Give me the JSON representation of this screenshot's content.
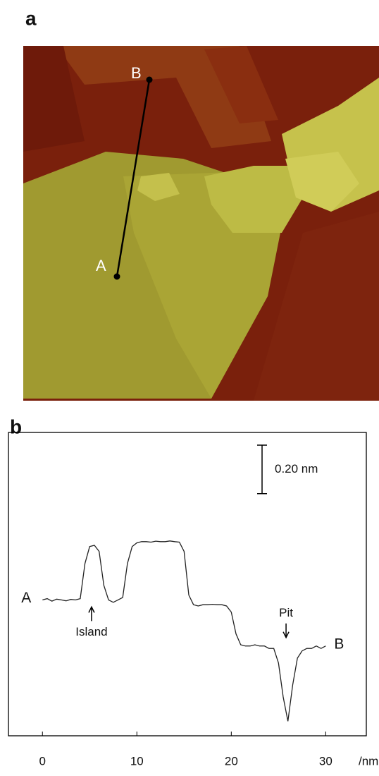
{
  "panels": {
    "a": {
      "label": "a",
      "point_a": "A",
      "point_b": "B"
    },
    "b": {
      "label": "b"
    }
  },
  "chart_data": {
    "type": "line",
    "xlabel": "/nm",
    "x": [
      0,
      0.5,
      1,
      1.5,
      2,
      2.5,
      3,
      3.5,
      4,
      4.5,
      5,
      5.5,
      6,
      6.5,
      7,
      7.5,
      8,
      8.5,
      9,
      9.5,
      10,
      10.5,
      11,
      11.5,
      12,
      12.5,
      13,
      13.5,
      14,
      14.5,
      15,
      15.5,
      16,
      16.5,
      17,
      17.5,
      18,
      18.5,
      19,
      19.5,
      20,
      20.5,
      21,
      21.5,
      22,
      22.5,
      23,
      23.5,
      24,
      24.5,
      25,
      25.5,
      26,
      26.5,
      27,
      27.5,
      28,
      28.5,
      29,
      29.5,
      30
    ],
    "series": [
      {
        "color": "#222222",
        "start_label": "A",
        "end_label": "B",
        "values": [
          0,
          0.005,
          -0.005,
          0.003,
          0,
          -0.004,
          0.002,
          0,
          0.005,
          0.15,
          0.22,
          0.225,
          0.2,
          0.06,
          0,
          -0.01,
          0,
          0.01,
          0.15,
          0.22,
          0.235,
          0.24,
          0.24,
          0.238,
          0.242,
          0.24,
          0.24,
          0.243,
          0.24,
          0.238,
          0.2,
          0.02,
          -0.02,
          -0.025,
          -0.02,
          -0.02,
          -0.018,
          -0.02,
          -0.02,
          -0.025,
          -0.05,
          -0.14,
          -0.185,
          -0.19,
          -0.19,
          -0.185,
          -0.19,
          -0.19,
          -0.2,
          -0.2,
          -0.26,
          -0.4,
          -0.5,
          -0.35,
          -0.24,
          -0.21,
          -0.2,
          -0.2,
          -0.19,
          -0.2,
          -0.19
        ]
      }
    ],
    "xlim": [
      -3.6,
      34.3
    ],
    "ylim": [
      -0.56,
      0.69
    ],
    "xticks": [
      0,
      10,
      20,
      30
    ],
    "scale_bar": {
      "value": 0.2,
      "label": "0.20 nm"
    },
    "annotations": [
      {
        "text": "Island",
        "x": 5.2,
        "direction": "up"
      },
      {
        "text": "Pit",
        "x": 25.8,
        "direction": "down"
      }
    ]
  }
}
